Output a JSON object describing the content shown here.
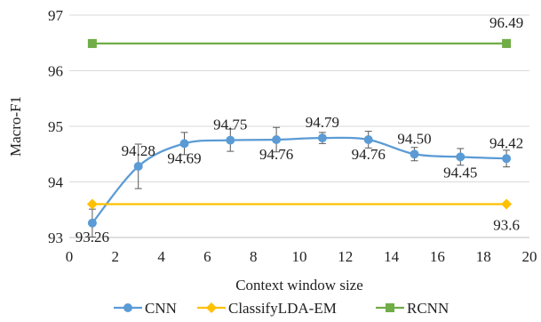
{
  "chart_data": {
    "type": "line",
    "xlabel": "Context window size",
    "ylabel": "Macro-F1",
    "xlim": [
      0,
      20
    ],
    "ylim": [
      93,
      97
    ],
    "xticks": [
      0,
      2,
      4,
      6,
      8,
      10,
      12,
      14,
      16,
      18,
      20
    ],
    "yticks": [
      93,
      94,
      95,
      96,
      97
    ],
    "grid": "horizontal",
    "legend_position": "bottom",
    "series": [
      {
        "name": "CNN",
        "color": "#5B9BD5",
        "marker": "circle",
        "smooth": true,
        "x": [
          1,
          3,
          5,
          7,
          9,
          11,
          13,
          15,
          17,
          19
        ],
        "y": [
          93.26,
          94.28,
          94.69,
          94.75,
          94.76,
          94.79,
          94.76,
          94.5,
          94.45,
          94.42
        ],
        "error": [
          0.25,
          0.4,
          0.2,
          0.2,
          0.22,
          0.1,
          0.15,
          0.12,
          0.15,
          0.15
        ],
        "labels": [
          "93.26",
          "94.28",
          "94.69",
          "94.75",
          "94.76",
          "94.79",
          "94.76",
          "94.50",
          "94.45",
          "94.42"
        ]
      },
      {
        "name": "ClassifyLDA-EM",
        "color": "#FFC000",
        "marker": "diamond",
        "smooth": false,
        "x": [
          1,
          19
        ],
        "y": [
          93.6,
          93.6
        ],
        "labels": [
          null,
          "93.6"
        ]
      },
      {
        "name": "RCNN",
        "color": "#70AD47",
        "marker": "square",
        "smooth": false,
        "x": [
          1,
          19
        ],
        "y": [
          96.49,
          96.49
        ],
        "error": [
          0.07,
          0.07
        ],
        "labels": [
          null,
          "96.49"
        ]
      }
    ]
  }
}
